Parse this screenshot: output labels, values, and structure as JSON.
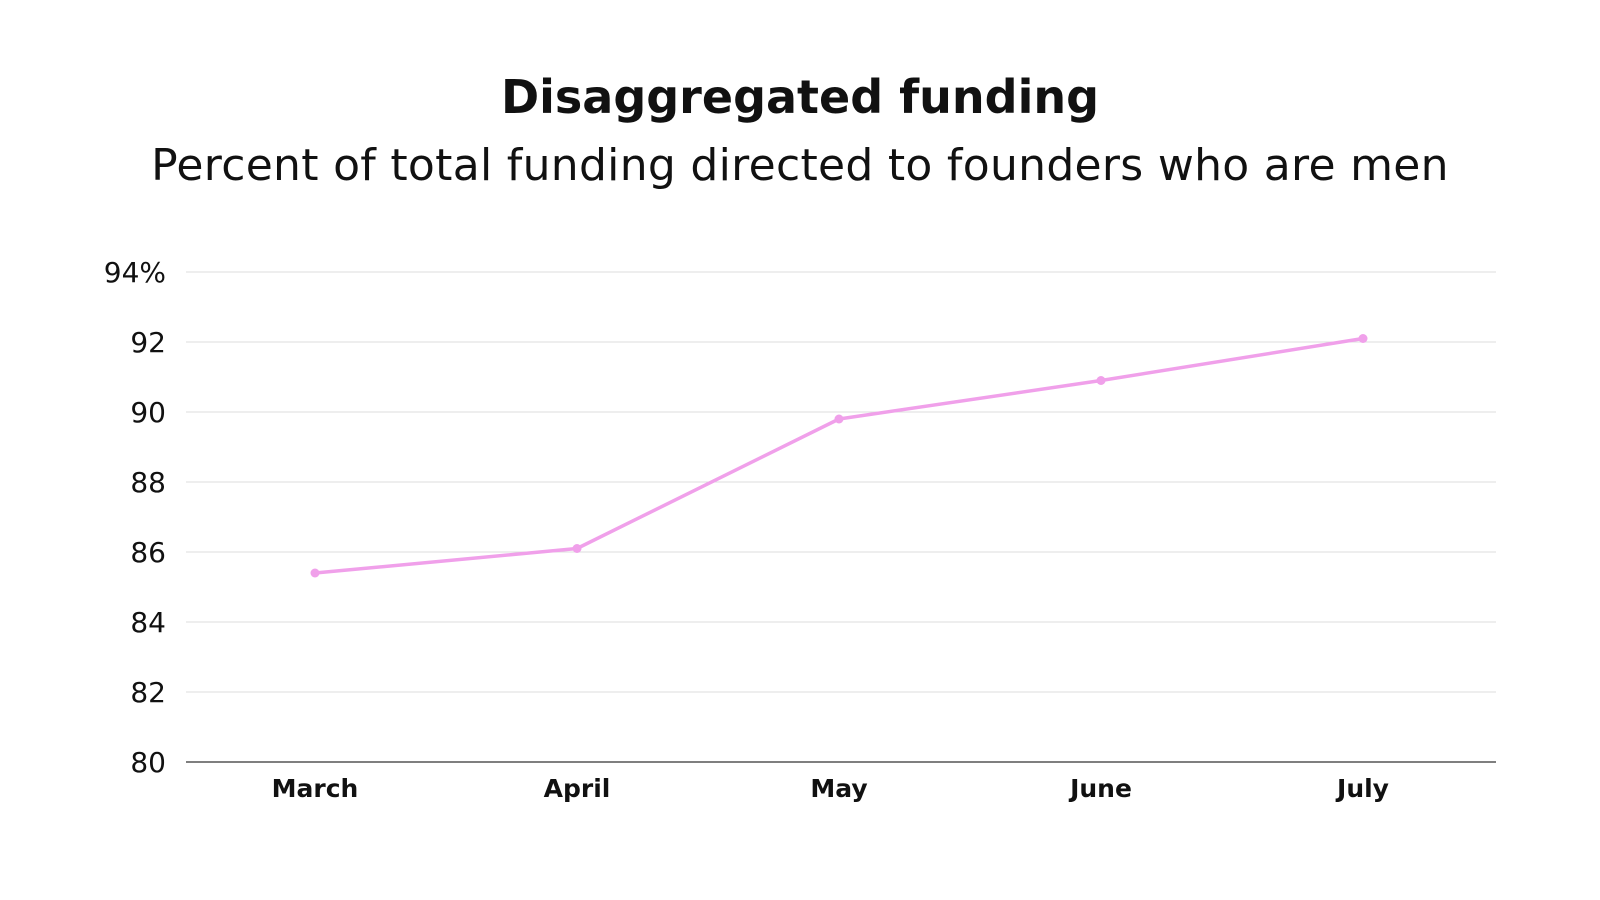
{
  "chart_data": {
    "type": "line",
    "title": "Disaggregated funding",
    "subtitle": "Percent of total funding directed to founders who are men",
    "xlabel": "",
    "ylabel": "",
    "categories": [
      "March",
      "April",
      "May",
      "June",
      "July"
    ],
    "series": [
      {
        "values": [
          85.4,
          86.1,
          89.8,
          90.9,
          92.1
        ],
        "color": "#f0a0ea"
      }
    ],
    "ylim": [
      80,
      94
    ],
    "yticks": [
      80,
      82,
      84,
      86,
      88,
      90,
      92,
      94
    ],
    "ytick_labels": [
      "80",
      "82",
      "84",
      "86",
      "88",
      "90",
      "92",
      "94%"
    ],
    "grid": true,
    "gridline_color": "#dddddd",
    "axis_color": "#555555",
    "legend": "none"
  }
}
